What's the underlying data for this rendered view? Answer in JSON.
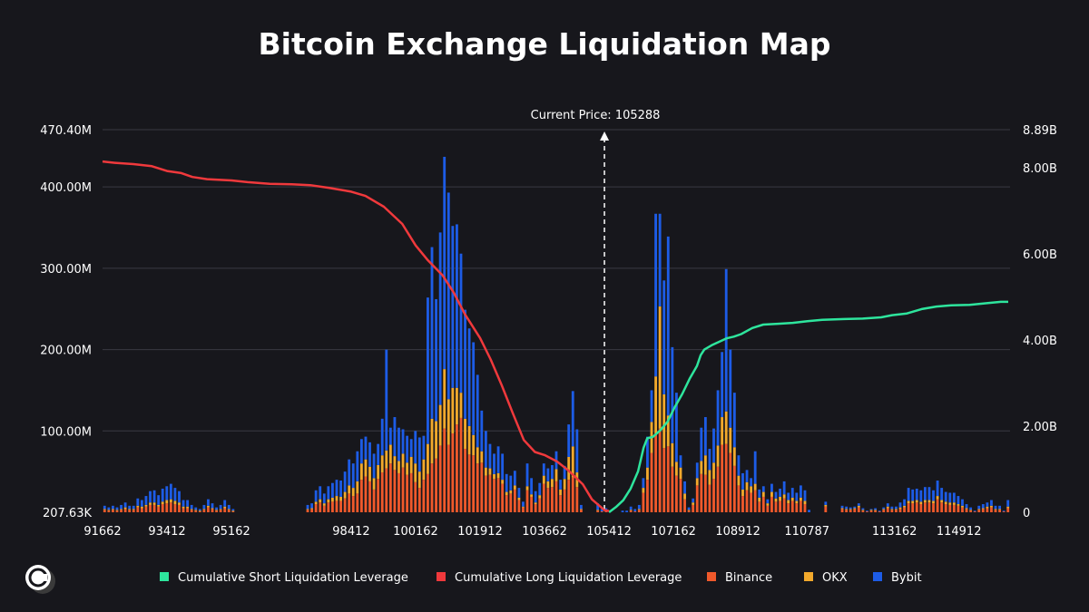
{
  "chart_data": {
    "type": "bar",
    "title": "Bitcoin Exchange Liquidation Map",
    "annotation": "Current Price: 105288",
    "current_price": 105288,
    "x_ticks": [
      "91662",
      "93412",
      "95162",
      "98412",
      "100162",
      "101912",
      "103662",
      "105412",
      "107162",
      "108912",
      "110787",
      "113162",
      "114912"
    ],
    "y_left_ticks": [
      "207.63K",
      "100.00M",
      "200.00M",
      "300.00M",
      "400.00M",
      "470.40M"
    ],
    "y_left_tick_values": [
      0,
      100,
      200,
      300,
      400,
      470.4
    ],
    "y_left_max": 470.4,
    "y_right_ticks": [
      "0",
      "2.00B",
      "4.00B",
      "6.00B",
      "8.00B",
      "8.89B"
    ],
    "y_right_tick_values": [
      0,
      2,
      4,
      6,
      8,
      8.89
    ],
    "y_right_max": 8.89,
    "colors": {
      "short": "#2ee59d",
      "long": "#f0393c",
      "binance": "#f0592b",
      "okx": "#f2a92c",
      "bybit": "#1d5ce6",
      "grid": "#3a3a42",
      "background": "#17171c"
    },
    "legend": [
      {
        "name": "Cumulative Short Liquidation Leverage",
        "color": "#2ee59d"
      },
      {
        "name": "Cumulative Long Liquidation Leverage",
        "color": "#f0393c"
      },
      {
        "name": "Binance",
        "color": "#f0592b"
      },
      {
        "name": "OKX",
        "color": "#f2a92c"
      },
      {
        "name": "Bybit",
        "color": "#1d5ce6"
      }
    ],
    "series_bars": [
      {
        "name": "Binance",
        "values": [
          3,
          2,
          3,
          2,
          3,
          4,
          3,
          3,
          6,
          5,
          7,
          9,
          9,
          7,
          10,
          11,
          12,
          10,
          9,
          5,
          5,
          3,
          2,
          1,
          3,
          6,
          4,
          2,
          3,
          5,
          3,
          1,
          0,
          0,
          0,
          0,
          0,
          0,
          0,
          0,
          0,
          0,
          0,
          0,
          0,
          0,
          0,
          0,
          0,
          3,
          4,
          10,
          12,
          8,
          12,
          13,
          14,
          14,
          17,
          23,
          20,
          23,
          40,
          44,
          38,
          28,
          41,
          49,
          54,
          60,
          52,
          48,
          55,
          46,
          48,
          37,
          30,
          40,
          47,
          60,
          66,
          82,
          103,
          83,
          97,
          108,
          116,
          78,
          71,
          70,
          60,
          61,
          45,
          46,
          41,
          42,
          35,
          21,
          23,
          28,
          15,
          6,
          27,
          19,
          10,
          17,
          35,
          30,
          31,
          38,
          21,
          28,
          40,
          43,
          31,
          3,
          0,
          0,
          0,
          2,
          1,
          1,
          0,
          0,
          0,
          0,
          0,
          2,
          1,
          3,
          24,
          40,
          73,
          97,
          103,
          79,
          81,
          56,
          45,
          41,
          16,
          2,
          9,
          33,
          47,
          46,
          34,
          41,
          56,
          83,
          84,
          73,
          57,
          33,
          20,
          27,
          24,
          27,
          13,
          19,
          8,
          19,
          13,
          14,
          17,
          11,
          14,
          11,
          14,
          10,
          0,
          0,
          0,
          0,
          7,
          0,
          0,
          0,
          4,
          3,
          3,
          4,
          6,
          2,
          1,
          2,
          2,
          1,
          3,
          5,
          3,
          3,
          4,
          6,
          11,
          11,
          12,
          10,
          12,
          12,
          11,
          16,
          12,
          10,
          9,
          9,
          8,
          6,
          4,
          2,
          1,
          3,
          4,
          5,
          6,
          3,
          3,
          1,
          5
        ]
      },
      {
        "name": "OKX",
        "values": [
          1,
          1,
          1,
          1,
          1,
          2,
          1,
          1,
          2,
          2,
          2,
          3,
          3,
          2,
          3,
          4,
          4,
          4,
          3,
          2,
          2,
          1,
          1,
          1,
          1,
          2,
          1,
          1,
          1,
          2,
          1,
          1,
          0,
          0,
          0,
          0,
          0,
          0,
          0,
          0,
          0,
          0,
          0,
          0,
          0,
          0,
          0,
          0,
          0,
          1,
          1,
          3,
          4,
          3,
          4,
          5,
          6,
          5,
          8,
          10,
          10,
          15,
          20,
          21,
          18,
          14,
          17,
          21,
          22,
          23,
          17,
          15,
          17,
          15,
          20,
          23,
          20,
          25,
          37,
          55,
          46,
          50,
          73,
          56,
          56,
          45,
          31,
          37,
          35,
          25,
          20,
          14,
          10,
          8,
          6,
          6,
          5,
          4,
          4,
          5,
          3,
          1,
          5,
          3,
          2,
          4,
          10,
          8,
          10,
          15,
          7,
          13,
          28,
          38,
          18,
          1,
          0,
          0,
          0,
          1,
          0,
          0,
          0,
          0,
          0,
          0,
          0,
          1,
          0,
          1,
          6,
          15,
          38,
          70,
          150,
          66,
          38,
          29,
          17,
          14,
          7,
          1,
          3,
          9,
          16,
          24,
          18,
          20,
          26,
          34,
          40,
          31,
          23,
          12,
          8,
          10,
          8,
          8,
          5,
          6,
          3,
          6,
          4,
          5,
          5,
          4,
          4,
          3,
          4,
          4,
          0,
          0,
          0,
          0,
          2,
          0,
          0,
          0,
          1,
          1,
          1,
          1,
          2,
          1,
          0,
          1,
          1,
          0,
          1,
          2,
          1,
          1,
          2,
          2,
          3,
          3,
          3,
          3,
          3,
          3,
          3,
          4,
          3,
          3,
          3,
          3,
          2,
          2,
          1,
          1,
          0,
          1,
          1,
          2,
          2,
          1,
          1,
          0,
          2
        ]
      },
      {
        "name": "Bybit",
        "values": [
          4,
          3,
          4,
          3,
          5,
          6,
          4,
          4,
          9,
          8,
          11,
          14,
          15,
          12,
          16,
          17,
          19,
          16,
          14,
          8,
          8,
          5,
          3,
          2,
          5,
          8,
          6,
          3,
          5,
          8,
          5,
          2,
          0,
          0,
          0,
          0,
          0,
          0,
          0,
          0,
          0,
          0,
          0,
          0,
          0,
          0,
          0,
          0,
          0,
          5,
          6,
          14,
          16,
          12,
          16,
          18,
          20,
          20,
          25,
          32,
          30,
          37,
          30,
          28,
          30,
          30,
          26,
          45,
          124,
          21,
          48,
          41,
          30,
          33,
          22,
          40,
          42,
          29,
          180,
          211,
          150,
          212,
          261,
          254,
          199,
          201,
          171,
          134,
          120,
          114,
          89,
          50,
          45,
          30,
          25,
          33,
          32,
          22,
          18,
          18,
          12,
          6,
          28,
          20,
          14,
          15,
          15,
          16,
          17,
          22,
          12,
          16,
          40,
          68,
          53,
          5,
          0,
          0,
          0,
          8,
          3,
          4,
          0,
          0,
          0,
          2,
          2,
          4,
          3,
          5,
          12,
          38,
          39,
          200,
          114,
          140,
          220,
          118,
          85,
          15,
          15,
          3,
          5,
          19,
          41,
          47,
          26,
          42,
          68,
          80,
          175,
          96,
          67,
          25,
          20,
          15,
          10,
          40,
          10,
          7,
          5,
          10,
          8,
          10,
          16,
          9,
          12,
          10,
          15,
          13,
          3,
          0,
          0,
          0,
          4,
          0,
          0,
          0,
          3,
          3,
          2,
          2,
          3,
          2,
          1,
          1,
          2,
          1,
          2,
          4,
          3,
          3,
          6,
          8,
          16,
          14,
          14,
          14,
          16,
          16,
          13,
          19,
          15,
          12,
          12,
          12,
          10,
          8,
          5,
          3,
          1,
          4,
          5,
          5,
          7,
          4,
          4,
          1,
          8
        ]
      }
    ],
    "series_lines": [
      {
        "name": "Cumulative Short Liquidation Leverage",
        "points": [
          [
            105412,
            0
          ],
          [
            105600,
            0.12
          ],
          [
            105800,
            0.28
          ],
          [
            106000,
            0.55
          ],
          [
            106200,
            0.95
          ],
          [
            106350,
            1.5
          ],
          [
            106450,
            1.72
          ],
          [
            106600,
            1.75
          ],
          [
            106800,
            1.9
          ],
          [
            107000,
            2.1
          ],
          [
            107200,
            2.45
          ],
          [
            107400,
            2.75
          ],
          [
            107600,
            3.1
          ],
          [
            107800,
            3.4
          ],
          [
            107900,
            3.65
          ],
          [
            108000,
            3.78
          ],
          [
            108200,
            3.88
          ],
          [
            108400,
            3.96
          ],
          [
            108600,
            4.04
          ],
          [
            108800,
            4.08
          ],
          [
            109000,
            4.14
          ],
          [
            109300,
            4.28
          ],
          [
            109600,
            4.36
          ],
          [
            110000,
            4.38
          ],
          [
            110400,
            4.4
          ],
          [
            110800,
            4.44
          ],
          [
            111200,
            4.47
          ],
          [
            111800,
            4.49
          ],
          [
            112300,
            4.5
          ],
          [
            112800,
            4.53
          ],
          [
            113100,
            4.58
          ],
          [
            113500,
            4.62
          ],
          [
            113900,
            4.72
          ],
          [
            114300,
            4.78
          ],
          [
            114700,
            4.81
          ],
          [
            115200,
            4.82
          ],
          [
            115700,
            4.86
          ],
          [
            116050,
            4.89
          ],
          [
            116250,
            4.89
          ]
        ]
      },
      {
        "name": "Cumulative Long Liquidation Leverage",
        "points": [
          [
            91662,
            8.15
          ],
          [
            92000,
            8.12
          ],
          [
            92500,
            8.09
          ],
          [
            93000,
            8.04
          ],
          [
            93412,
            7.93
          ],
          [
            93800,
            7.88
          ],
          [
            94100,
            7.79
          ],
          [
            94500,
            7.74
          ],
          [
            95162,
            7.71
          ],
          [
            95600,
            7.67
          ],
          [
            96200,
            7.63
          ],
          [
            96800,
            7.62
          ],
          [
            97300,
            7.6
          ],
          [
            97800,
            7.54
          ],
          [
            98412,
            7.45
          ],
          [
            98800,
            7.35
          ],
          [
            99300,
            7.1
          ],
          [
            99800,
            6.7
          ],
          [
            100162,
            6.2
          ],
          [
            100500,
            5.85
          ],
          [
            100900,
            5.5
          ],
          [
            101200,
            5.1
          ],
          [
            101500,
            4.6
          ],
          [
            101912,
            4.05
          ],
          [
            102200,
            3.55
          ],
          [
            102500,
            2.95
          ],
          [
            102800,
            2.3
          ],
          [
            103100,
            1.68
          ],
          [
            103400,
            1.4
          ],
          [
            103662,
            1.33
          ],
          [
            104000,
            1.18
          ],
          [
            104300,
            0.98
          ],
          [
            104700,
            0.65
          ],
          [
            104950,
            0.3
          ],
          [
            105288,
            0.05
          ],
          [
            105412,
            0.03
          ]
        ]
      }
    ]
  }
}
